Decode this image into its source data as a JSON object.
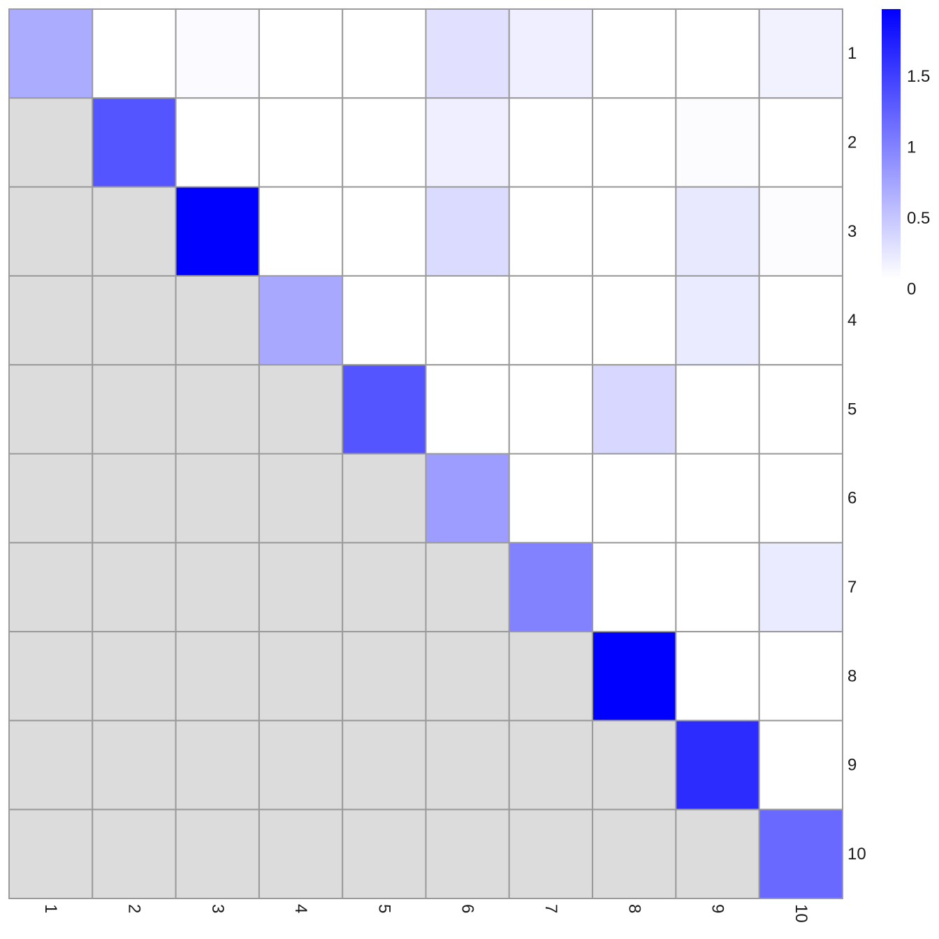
{
  "chart_data": {
    "type": "heatmap",
    "title": "",
    "xlabel": "",
    "ylabel": "",
    "x_categories": [
      "1",
      "2",
      "3",
      "4",
      "5",
      "6",
      "7",
      "8",
      "9",
      "10"
    ],
    "y_categories": [
      "1",
      "2",
      "3",
      "4",
      "5",
      "6",
      "7",
      "8",
      "9",
      "10"
    ],
    "masked_color": "#dcdcdc",
    "color_scale": {
      "low": "#ffffff",
      "high": "#0000ff",
      "min": 0,
      "max": 1.9
    },
    "legend": {
      "position": "right",
      "ticks": [
        {
          "value": 0,
          "label": "0"
        },
        {
          "value": 0.5,
          "label": "0.5"
        },
        {
          "value": 1,
          "label": "1"
        },
        {
          "value": 1.5,
          "label": "1.5"
        }
      ]
    },
    "matrix": [
      [
        0.62,
        0,
        0.03,
        0,
        0,
        0.22,
        0.12,
        0,
        0,
        0.1
      ],
      [
        null,
        1.27,
        0,
        0,
        0,
        0.12,
        0,
        0,
        0.02,
        0
      ],
      [
        null,
        null,
        1.9,
        0,
        0,
        0.27,
        0,
        0,
        0.17,
        0.02
      ],
      [
        null,
        null,
        null,
        0.65,
        0,
        0,
        0,
        0,
        0.15,
        0
      ],
      [
        null,
        null,
        null,
        null,
        1.27,
        0,
        0,
        0.3,
        0,
        0
      ],
      [
        null,
        null,
        null,
        null,
        null,
        0.73,
        0,
        0,
        0,
        0
      ],
      [
        null,
        null,
        null,
        null,
        null,
        null,
        0.93,
        0,
        0,
        0.15
      ],
      [
        null,
        null,
        null,
        null,
        null,
        null,
        null,
        1.9,
        0,
        0
      ],
      [
        null,
        null,
        null,
        null,
        null,
        null,
        null,
        null,
        1.57,
        0
      ],
      [
        null,
        null,
        null,
        null,
        null,
        null,
        null,
        null,
        null,
        1.12
      ]
    ]
  }
}
